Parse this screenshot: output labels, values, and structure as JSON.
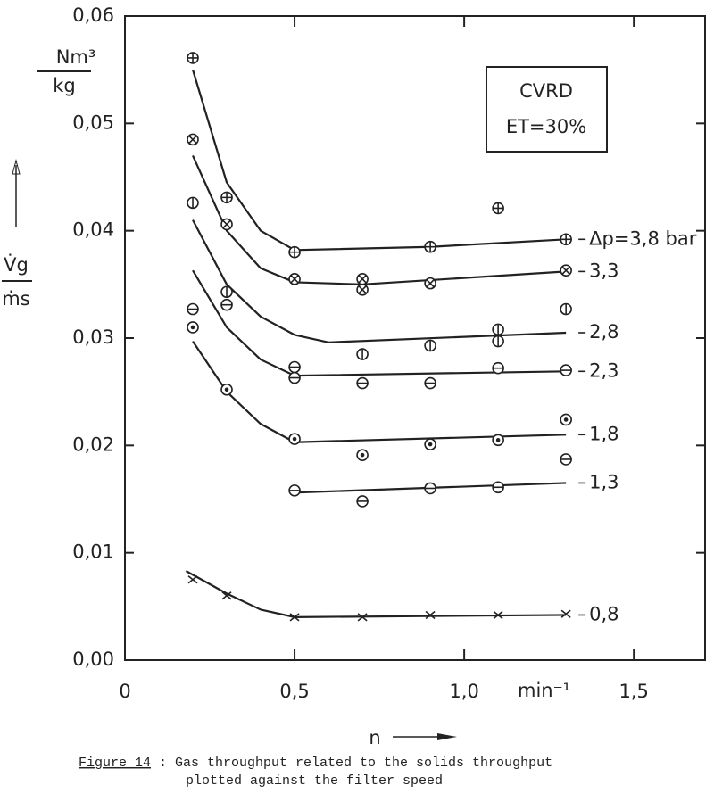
{
  "chart_data": {
    "type": "scatter",
    "y_unit_top": "Nm³",
    "y_unit_bottom": "kg",
    "y_label_top": "V̇g",
    "y_label_bottom": "ṁs",
    "x_label": "n",
    "x_unit": "min⁻¹",
    "box_lines": [
      "CVRD",
      "ET=30%"
    ],
    "caption_ref": "Figure 14",
    "caption_lines": [
      ": Gas throughput related to the solids throughput",
      "plotted against the filter speed"
    ],
    "xlim": [
      0,
      1.71
    ],
    "ylim": [
      0,
      0.06
    ],
    "xticks": [
      {
        "value": 0,
        "label": "0"
      },
      {
        "value": 0.5,
        "label": "0,5"
      },
      {
        "value": 1.0,
        "label": "1,0"
      },
      {
        "value": 1.5,
        "label": "1,5"
      }
    ],
    "yticks": [
      {
        "value": 0,
        "label": "0,00"
      },
      {
        "value": 0.01,
        "label": "0,01"
      },
      {
        "value": 0.02,
        "label": "0,02"
      },
      {
        "value": 0.03,
        "label": "0,03"
      },
      {
        "value": 0.04,
        "label": "0,04"
      },
      {
        "value": 0.05,
        "label": "0,05"
      },
      {
        "value": 0.06,
        "label": "0,06"
      }
    ],
    "color": "#222222",
    "series": [
      {
        "name": "Δp=3,8 bar",
        "marker": "oplus",
        "x": [
          0.2,
          0.3,
          0.5,
          0.9,
          1.1,
          1.3
        ],
        "values": [
          0.0561,
          0.0431,
          0.038,
          0.0385,
          0.0421,
          0.0392
        ],
        "fit": {
          "x": [
            0.2,
            0.3,
            0.4,
            0.5,
            0.9,
            1.3
          ],
          "values": [
            0.055,
            0.0445,
            0.04,
            0.0382,
            0.0385,
            0.0392
          ]
        }
      },
      {
        "name": "3,3",
        "marker": "otimes",
        "x": [
          0.2,
          0.3,
          0.5,
          0.7,
          0.7,
          0.9,
          1.3
        ],
        "values": [
          0.0485,
          0.0406,
          0.0355,
          0.0355,
          0.0345,
          0.0351,
          0.0363
        ],
        "fit": {
          "x": [
            0.2,
            0.3,
            0.4,
            0.5,
            0.7,
            1.3
          ],
          "values": [
            0.047,
            0.04,
            0.0365,
            0.0352,
            0.035,
            0.0362
          ]
        }
      },
      {
        "name": "2,8",
        "marker": "obar",
        "x": [
          0.2,
          0.3,
          0.7,
          0.9,
          1.1,
          1.1,
          1.3
        ],
        "values": [
          0.0426,
          0.0343,
          0.0285,
          0.0293,
          0.0308,
          0.0297,
          0.0327
        ],
        "fit": {
          "x": [
            0.2,
            0.3,
            0.4,
            0.5,
            0.6,
            1.3
          ],
          "values": [
            0.041,
            0.035,
            0.032,
            0.0303,
            0.0296,
            0.0305
          ]
        }
      },
      {
        "name": "2,3",
        "marker": "ominus",
        "x": [
          0.2,
          0.3,
          0.5,
          0.5,
          0.7,
          0.9,
          1.1,
          1.3
        ],
        "values": [
          0.0327,
          0.0331,
          0.0273,
          0.0263,
          0.0258,
          0.0258,
          0.0272,
          0.027
        ],
        "fit": {
          "x": [
            0.2,
            0.3,
            0.4,
            0.5,
            1.3
          ],
          "values": [
            0.0363,
            0.031,
            0.028,
            0.0265,
            0.0269
          ]
        }
      },
      {
        "name": "1,8",
        "marker": "odot",
        "x": [
          0.2,
          0.3,
          0.5,
          0.7,
          0.9,
          1.1,
          1.3
        ],
        "values": [
          0.031,
          0.0252,
          0.0206,
          0.0191,
          0.0201,
          0.0205,
          0.0224
        ],
        "fit": {
          "x": [
            0.2,
            0.3,
            0.4,
            0.5,
            1.3
          ],
          "values": [
            0.0297,
            0.025,
            0.022,
            0.0203,
            0.021
          ]
        }
      },
      {
        "name": "1,3",
        "marker": "ominus",
        "x": [
          0.5,
          0.7,
          0.9,
          1.1,
          1.3
        ],
        "values": [
          0.0158,
          0.0148,
          0.016,
          0.0161,
          0.0187
        ],
        "fit": {
          "x": [
            0.5,
            1.3
          ],
          "values": [
            0.0156,
            0.0165
          ]
        }
      },
      {
        "name": "0,8",
        "marker": "x",
        "x": [
          0.2,
          0.3,
          0.5,
          0.7,
          0.9,
          1.1,
          1.3
        ],
        "values": [
          0.0075,
          0.006,
          0.004,
          0.004,
          0.0042,
          0.0042,
          0.0043
        ],
        "fit": {
          "x": [
            0.18,
            0.3,
            0.4,
            0.5,
            1.3
          ],
          "values": [
            0.0083,
            0.0062,
            0.0047,
            0.004,
            0.0042
          ]
        }
      }
    ]
  }
}
